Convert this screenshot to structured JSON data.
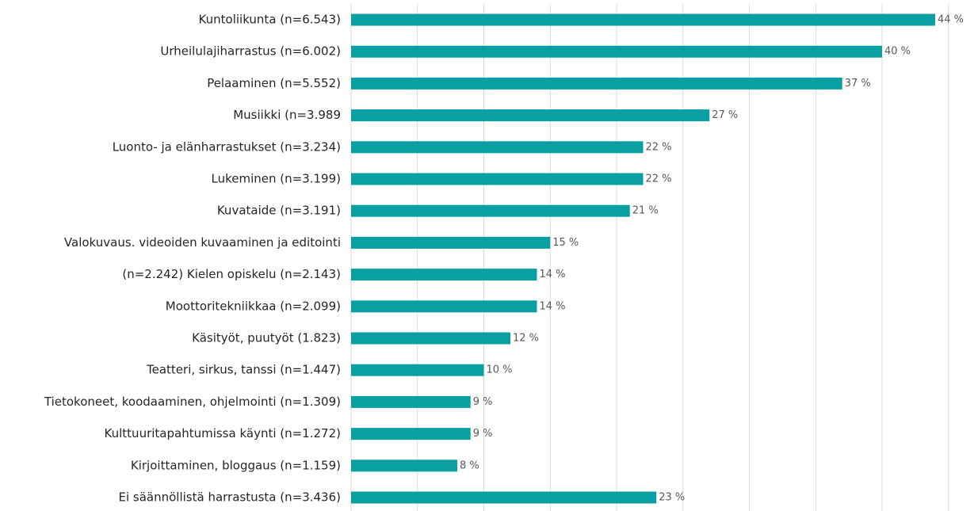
{
  "chart_data": {
    "type": "barh",
    "categories": [
      "Kuntoliikunta (n=6.543)",
      "Urheilulajiharrastus (n=6.002)",
      "Pelaaminen (n=5.552)",
      "Musiikki (n=3.989",
      "Luonto- ja elänharrastukset (n=3.234)",
      "Lukeminen (n=3.199)",
      "Kuvataide (n=3.191)",
      "Valokuvaus. videoiden kuvaaminen ja editointi",
      "(n=2.242) Kielen opiskelu (n=2.143)",
      "Moottoritekniikkaa (n=2.099)",
      "Käsityöt, puutyöt (1.823)",
      "Teatteri, sirkus, tanssi (n=1.447)",
      "Tietokoneet, koodaaminen, ohjelmointi (n=1.309)",
      "Kulttuuritapahtumissa käynti (n=1.272)",
      "Kirjoittaminen, bloggaus (n=1.159)",
      "Ei säännöllistä harrastusta (n=3.436)"
    ],
    "values": [
      44,
      40,
      37,
      27,
      22,
      22,
      21,
      15,
      14,
      14,
      12,
      10,
      9,
      9,
      8,
      23
    ],
    "value_labels": [
      "44 %",
      "40 %",
      "37 %",
      "27 %",
      "22 %",
      "22 %",
      "21 %",
      "15 %",
      "14 %",
      "14 %",
      "12 %",
      "10 %",
      "9 %",
      "9 %",
      "8 %",
      "23 %"
    ],
    "color": "#0aa0a3",
    "xlim": [
      0,
      45
    ],
    "xticks": [
      0,
      5,
      10,
      15,
      20,
      25,
      30,
      35,
      40,
      45
    ],
    "grid": true
  }
}
